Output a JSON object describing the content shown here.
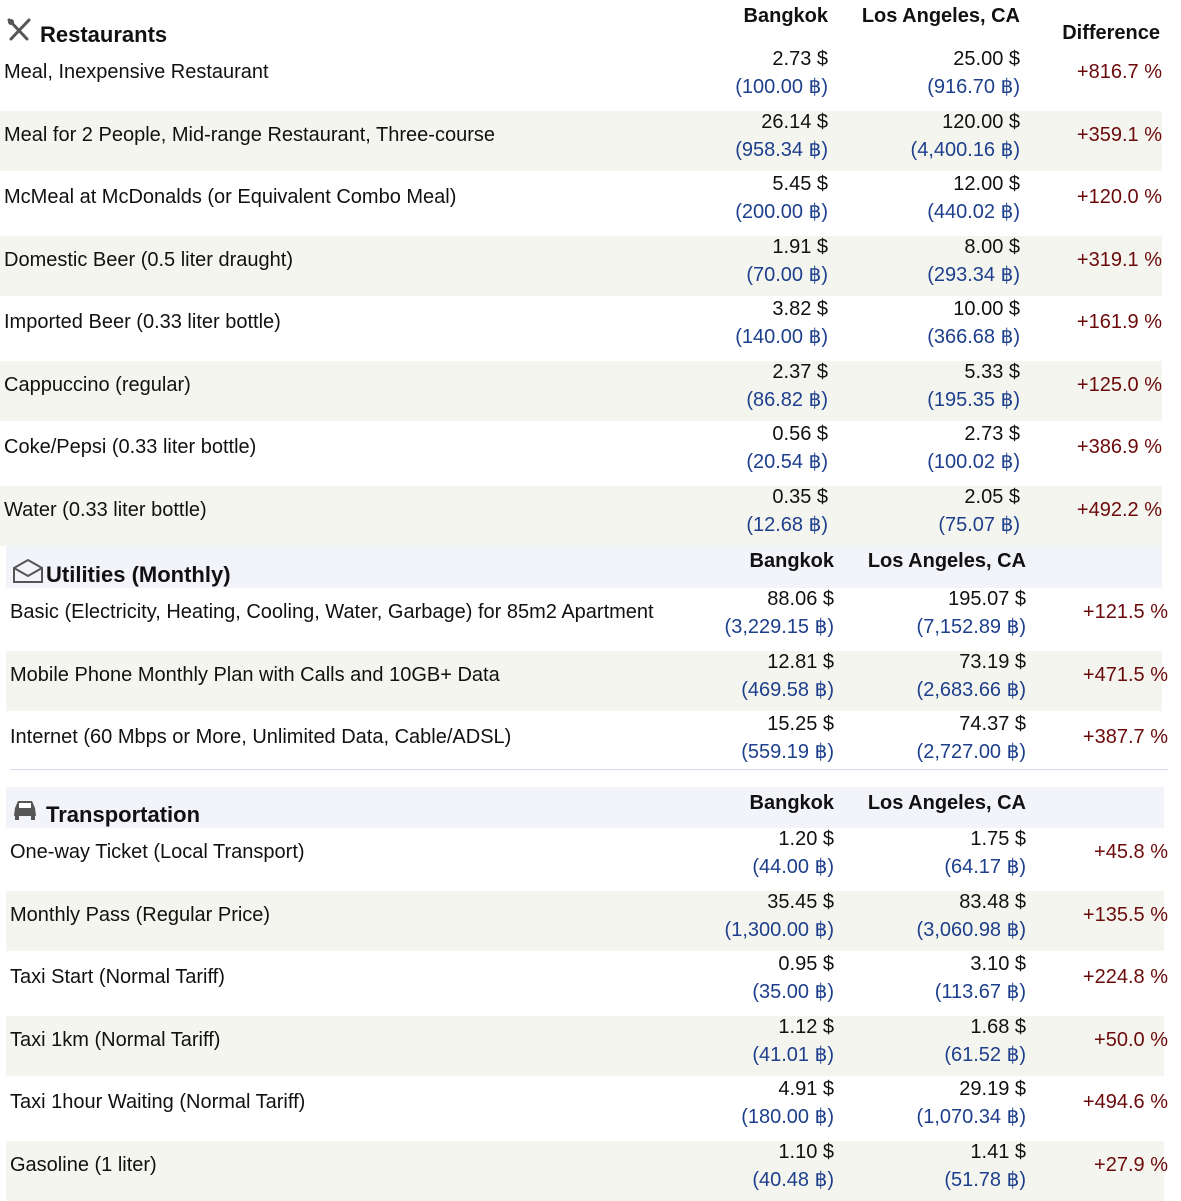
{
  "sections": [
    {
      "title": "Restaurants",
      "headers": [
        "Bangkok",
        "Los Angeles, CA",
        "Difference"
      ],
      "rows": [
        {
          "item": "Meal, Inexpensive Restaurant",
          "bangkok_usd": "2.73 $",
          "bangkok_thb": "(100.00 ฿)",
          "la_usd": "25.00 $",
          "la_thb": "(916.70 ฿)",
          "difference": "+816.7 %"
        },
        {
          "item": "Meal for 2 People, Mid-range Restaurant, Three-course",
          "bangkok_usd": "26.14 $",
          "bangkok_thb": "(958.34 ฿)",
          "la_usd": "120.00 $",
          "la_thb": "(4,400.16 ฿)",
          "difference": "+359.1 %"
        },
        {
          "item": "McMeal at McDonalds (or Equivalent Combo Meal)",
          "bangkok_usd": "5.45 $",
          "bangkok_thb": "(200.00 ฿)",
          "la_usd": "12.00 $",
          "la_thb": "(440.02 ฿)",
          "difference": "+120.0 %"
        },
        {
          "item": "Domestic Beer (0.5 liter draught)",
          "bangkok_usd": "1.91 $",
          "bangkok_thb": "(70.00 ฿)",
          "la_usd": "8.00 $",
          "la_thb": "(293.34 ฿)",
          "difference": "+319.1 %"
        },
        {
          "item": "Imported Beer (0.33 liter bottle)",
          "bangkok_usd": "3.82 $",
          "bangkok_thb": "(140.00 ฿)",
          "la_usd": "10.00 $",
          "la_thb": "(366.68 ฿)",
          "difference": "+161.9 %"
        },
        {
          "item": "Cappuccino (regular)",
          "bangkok_usd": "2.37 $",
          "bangkok_thb": "(86.82 ฿)",
          "la_usd": "5.33 $",
          "la_thb": "(195.35 ฿)",
          "difference": "+125.0 %"
        },
        {
          "item": "Coke/Pepsi (0.33 liter bottle)",
          "bangkok_usd": "0.56 $",
          "bangkok_thb": "(20.54 ฿)",
          "la_usd": "2.73 $",
          "la_thb": "(100.02 ฿)",
          "difference": "+386.9 %"
        },
        {
          "item": "Water (0.33 liter bottle)",
          "bangkok_usd": "0.35 $",
          "bangkok_thb": "(12.68 ฿)",
          "la_usd": "2.05 $",
          "la_thb": "(75.07 ฿)",
          "difference": "+492.2 %"
        }
      ]
    },
    {
      "title": "Utilities (Monthly)",
      "headers": [
        "Bangkok",
        "Los Angeles, CA"
      ],
      "rows": [
        {
          "item": "Basic (Electricity, Heating, Cooling, Water, Garbage) for 85m2 Apartment",
          "bangkok_usd": "88.06 $",
          "bangkok_thb": "(3,229.15 ฿)",
          "la_usd": "195.07 $",
          "la_thb": "(7,152.89 ฿)",
          "difference": "+121.5 %"
        },
        {
          "item": "Mobile Phone Monthly Plan with Calls and 10GB+ Data",
          "bangkok_usd": "12.81 $",
          "bangkok_thb": "(469.58 ฿)",
          "la_usd": "73.19 $",
          "la_thb": "(2,683.66 ฿)",
          "difference": "+471.5 %"
        },
        {
          "item": "Internet (60 Mbps or More, Unlimited Data, Cable/ADSL)",
          "bangkok_usd": "15.25 $",
          "bangkok_thb": "(559.19 ฿)",
          "la_usd": "74.37 $",
          "la_thb": "(2,727.00 ฿)",
          "difference": "+387.7 %"
        }
      ]
    },
    {
      "title": "Transportation",
      "headers": [
        "Bangkok",
        "Los Angeles, CA"
      ],
      "rows": [
        {
          "item": "One-way Ticket (Local Transport)",
          "bangkok_usd": "1.20 $",
          "bangkok_thb": "(44.00 ฿)",
          "la_usd": "1.75 $",
          "la_thb": "(64.17 ฿)",
          "difference": "+45.8 %"
        },
        {
          "item": "Monthly Pass (Regular Price)",
          "bangkok_usd": "35.45 $",
          "bangkok_thb": "(1,300.00 ฿)",
          "la_usd": "83.48 $",
          "la_thb": "(3,060.98 ฿)",
          "difference": "+135.5 %"
        },
        {
          "item": "Taxi Start (Normal Tariff)",
          "bangkok_usd": "0.95 $",
          "bangkok_thb": "(35.00 ฿)",
          "la_usd": "3.10 $",
          "la_thb": "(113.67 ฿)",
          "difference": "+224.8 %"
        },
        {
          "item": "Taxi 1km (Normal Tariff)",
          "bangkok_usd": "1.12 $",
          "bangkok_thb": "(41.01 ฿)",
          "la_usd": "1.68 $",
          "la_thb": "(61.52 ฿)",
          "difference": "+50.0 %"
        },
        {
          "item": "Taxi 1hour Waiting (Normal Tariff)",
          "bangkok_usd": "4.91 $",
          "bangkok_thb": "(180.00 ฿)",
          "la_usd": "29.19 $",
          "la_thb": "(1,070.34 ฿)",
          "difference": "+494.6 %"
        },
        {
          "item": "Gasoline (1 liter)",
          "bangkok_usd": "1.10 $",
          "bangkok_thb": "(40.48 ฿)",
          "la_usd": "1.41 $",
          "la_thb": "(51.78 ฿)",
          "difference": "+27.9 %"
        }
      ]
    }
  ]
}
